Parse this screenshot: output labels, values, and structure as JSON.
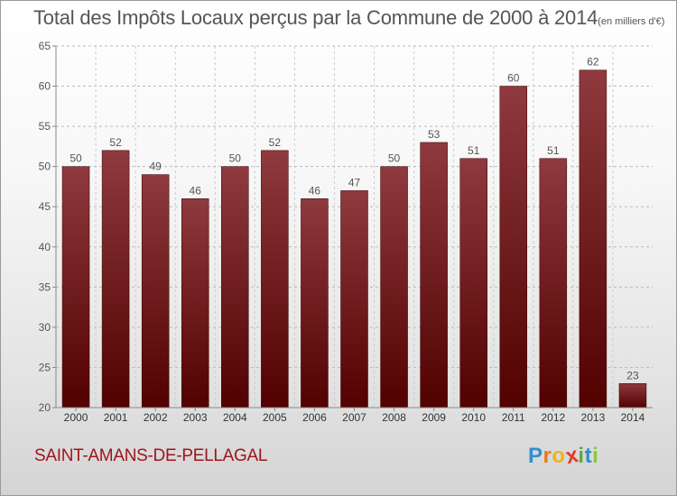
{
  "title": "Total des Impôts Locaux perçus par la Commune de 2000 à 2014",
  "unit": "(en milliers d'€)",
  "commune": "SAINT-AMANS-DE-PELLAGAL",
  "logo": {
    "letters": [
      "P",
      "r",
      "o",
      "x",
      "i",
      "t",
      "i"
    ],
    "colors": [
      "#2e8fd0",
      "#e8791e",
      "#f0b21c",
      "#e03a2c",
      "#5fa83a",
      "#2e8fd0",
      "#8cc63e"
    ]
  },
  "colors": {
    "bar_top": "#8e3a3e",
    "bar_bottom": "#520000",
    "grid": "#bbbbbb",
    "commune": "#a0141c"
  },
  "chart_data": {
    "type": "bar",
    "categories": [
      "2000",
      "2001",
      "2002",
      "2003",
      "2004",
      "2005",
      "2006",
      "2007",
      "2008",
      "2009",
      "2010",
      "2011",
      "2012",
      "2013",
      "2014"
    ],
    "values": [
      50,
      52,
      49,
      46,
      50,
      52,
      46,
      47,
      50,
      53,
      51,
      60,
      51,
      62,
      23
    ],
    "ylim": [
      20,
      65
    ],
    "yticks": [
      20,
      25,
      30,
      35,
      40,
      45,
      50,
      55,
      60,
      65
    ],
    "xlabel": "",
    "ylabel": "",
    "grid": true,
    "data_labels": true
  }
}
